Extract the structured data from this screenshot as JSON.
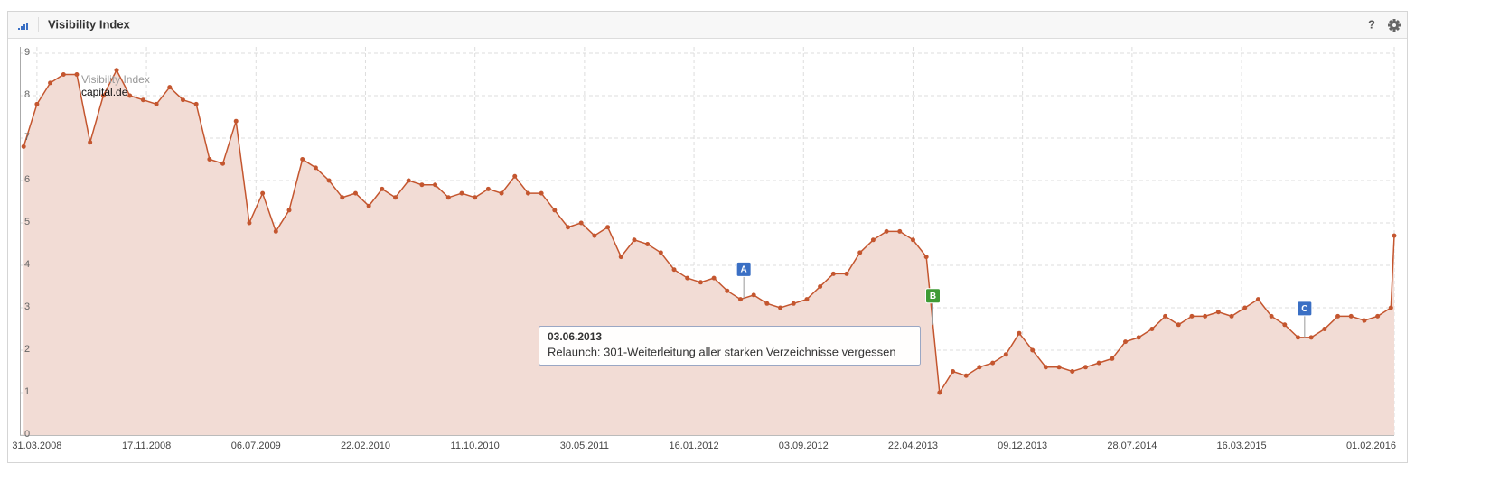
{
  "header": {
    "title": "Visibility Index",
    "help": "?"
  },
  "chart_data": {
    "type": "line",
    "legend_title": "Visibility Index",
    "x": [
      "03.03.2008",
      "31.03.2008",
      "28.04.2008",
      "26.05.2008",
      "23.06.2008",
      "21.07.2008",
      "18.08.2008",
      "15.09.2008",
      "13.10.2008",
      "10.11.2008",
      "08.12.2008",
      "05.01.2009",
      "02.02.2009",
      "02.03.2009",
      "30.03.2009",
      "27.04.2009",
      "25.05.2009",
      "22.06.2009",
      "20.07.2009",
      "17.08.2009",
      "14.09.2009",
      "12.10.2009",
      "09.11.2009",
      "07.12.2009",
      "04.01.2010",
      "01.02.2010",
      "01.03.2010",
      "29.03.2010",
      "26.04.2010",
      "24.05.2010",
      "21.06.2010",
      "19.07.2010",
      "16.08.2010",
      "13.09.2010",
      "11.10.2010",
      "08.11.2010",
      "06.12.2010",
      "03.01.2011",
      "31.01.2011",
      "28.02.2011",
      "28.03.2011",
      "25.04.2011",
      "23.05.2011",
      "20.06.2011",
      "18.07.2011",
      "15.08.2011",
      "12.09.2011",
      "10.10.2011",
      "07.11.2011",
      "05.12.2011",
      "02.01.2012",
      "30.01.2012",
      "27.02.2012",
      "26.03.2012",
      "23.04.2012",
      "21.05.2012",
      "18.06.2012",
      "16.07.2012",
      "13.08.2012",
      "10.09.2012",
      "08.10.2012",
      "05.11.2012",
      "03.12.2012",
      "31.12.2012",
      "28.01.2013",
      "25.02.2013",
      "25.03.2013",
      "22.04.2013",
      "20.05.2013",
      "17.06.2013",
      "15.07.2013",
      "12.08.2013",
      "09.09.2013",
      "07.10.2013",
      "04.11.2013",
      "02.12.2013",
      "30.12.2013",
      "27.01.2014",
      "24.02.2014",
      "24.03.2014",
      "21.04.2014",
      "19.05.2014",
      "16.06.2014",
      "14.07.2014",
      "11.08.2014",
      "08.09.2014",
      "06.10.2014",
      "03.11.2014",
      "01.12.2014",
      "29.12.2014",
      "26.01.2015",
      "23.02.2015",
      "23.03.2015",
      "20.04.2015",
      "18.05.2015",
      "15.06.2015",
      "13.07.2015",
      "10.08.2015",
      "07.09.2015",
      "05.10.2015",
      "02.11.2015",
      "30.11.2015",
      "28.12.2015",
      "25.01.2016",
      "01.02.2016"
    ],
    "series": [
      {
        "name": "capital.de",
        "color": "#c4562f",
        "fill": "#f2dcd5",
        "values": [
          6.8,
          7.8,
          8.3,
          8.5,
          8.5,
          6.9,
          8.0,
          8.6,
          8.0,
          7.9,
          7.8,
          8.2,
          7.9,
          7.8,
          6.5,
          6.4,
          7.4,
          5.0,
          5.7,
          4.8,
          5.3,
          6.5,
          6.3,
          6.0,
          5.6,
          5.7,
          5.4,
          5.8,
          5.6,
          6.0,
          5.9,
          5.9,
          5.6,
          5.7,
          5.6,
          5.8,
          5.7,
          6.1,
          5.7,
          5.7,
          5.3,
          4.9,
          5.0,
          4.7,
          4.9,
          4.2,
          4.6,
          4.5,
          4.3,
          3.9,
          3.7,
          3.6,
          3.7,
          3.4,
          3.2,
          3.3,
          3.1,
          3.0,
          3.1,
          3.2,
          3.5,
          3.8,
          3.8,
          4.3,
          4.6,
          4.8,
          4.8,
          4.6,
          4.2,
          1.0,
          1.5,
          1.4,
          1.6,
          1.7,
          1.9,
          2.4,
          2.0,
          1.6,
          1.6,
          1.5,
          1.6,
          1.7,
          1.8,
          2.2,
          2.3,
          2.5,
          2.8,
          2.6,
          2.8,
          2.8,
          2.9,
          2.8,
          3.0,
          3.2,
          2.8,
          2.6,
          2.3,
          2.3,
          2.5,
          2.8,
          2.8,
          2.7,
          2.8,
          3.0,
          4.7
        ]
      }
    ],
    "xlim": [
      "24.02.2008",
      "01.02.2016"
    ],
    "xticks": [
      "31.03.2008",
      "17.11.2008",
      "06.07.2009",
      "22.02.2010",
      "11.10.2010",
      "30.05.2011",
      "16.01.2012",
      "03.09.2012",
      "22.04.2013",
      "09.12.2013",
      "28.07.2014",
      "16.03.2015",
      "01.02.2016"
    ],
    "ylim": [
      0,
      9
    ],
    "yticks": [
      0,
      1,
      2,
      3,
      4,
      5,
      6,
      7,
      8,
      9
    ],
    "grid": true,
    "events": [
      {
        "label": "A",
        "x": "30.04.2012",
        "color": "#3a6fc4"
      },
      {
        "label": "B",
        "x": "03.06.2013",
        "color": "#3f9b35",
        "text": "Relaunch: 301-Weiterleitung aller starken Verzeichnisse vergessen"
      },
      {
        "label": "C",
        "x": "27.07.2015",
        "color": "#3a6fc4"
      }
    ]
  }
}
